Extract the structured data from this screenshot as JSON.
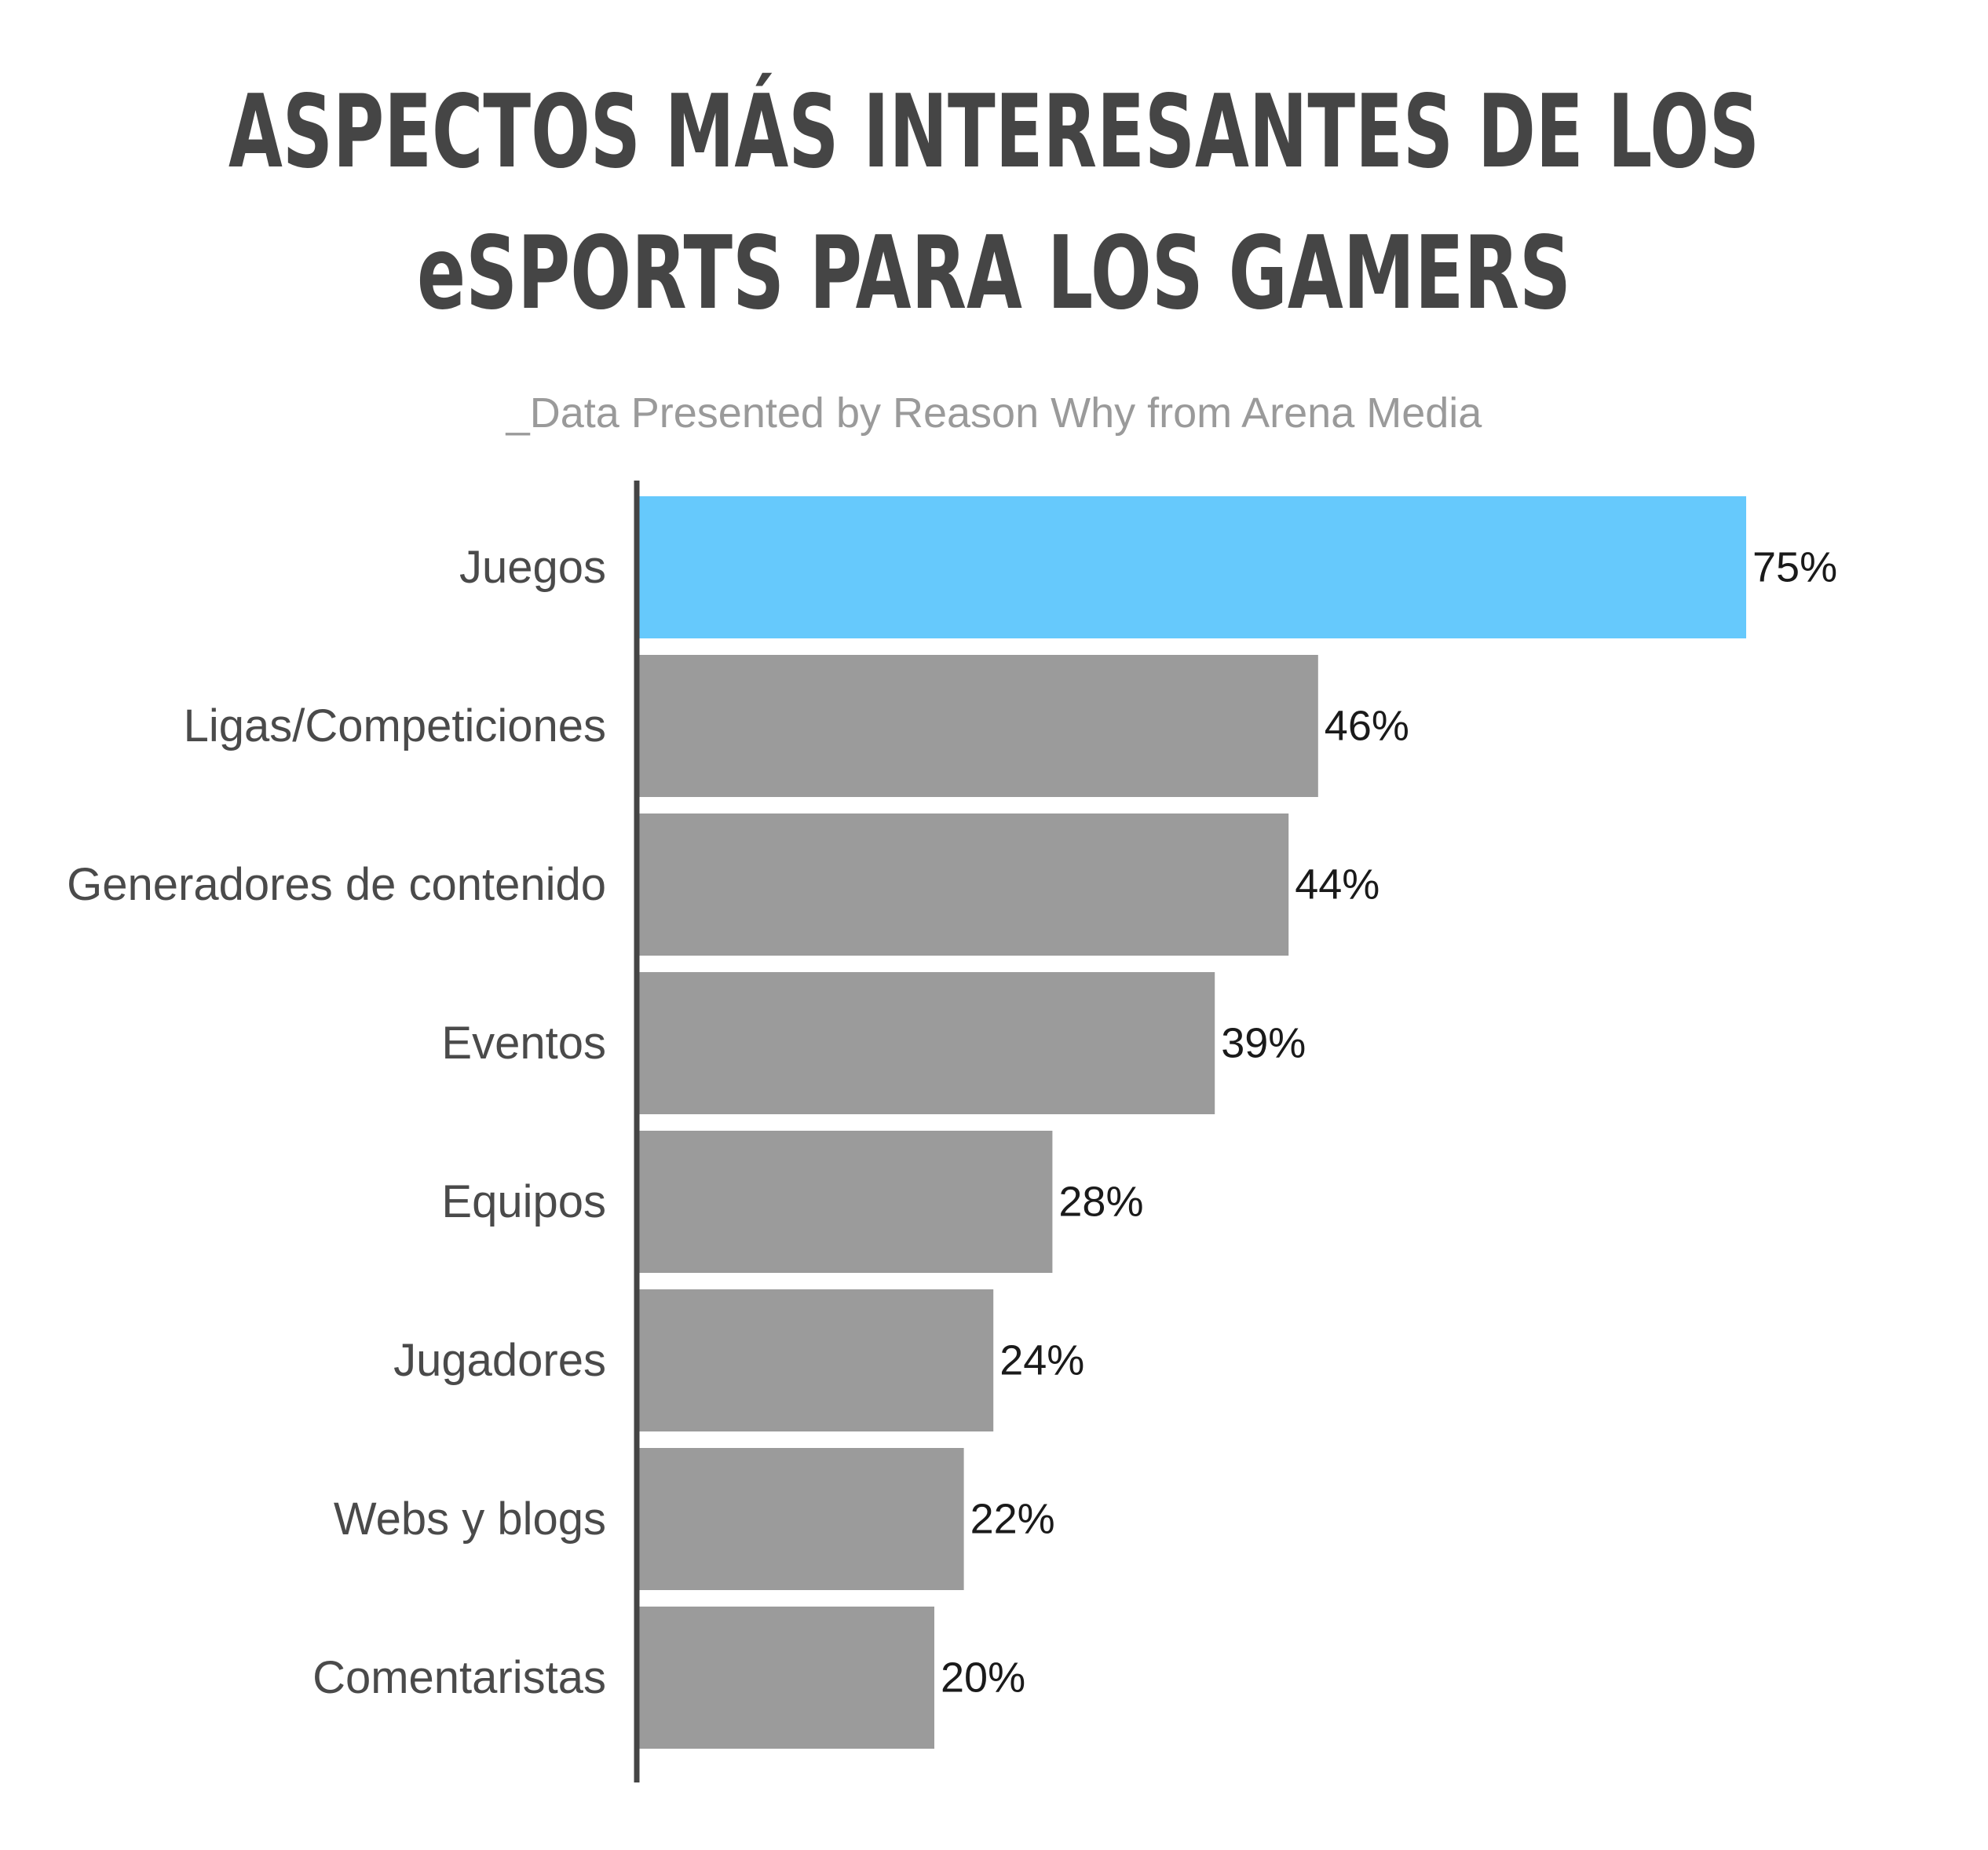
{
  "title_lines": [
    "ASPECTOS MÁS INTERESANTES DE LOS",
    "eSPORTS PARA LOS GAMERS"
  ],
  "subtitle": "_Data Presented by Reason Why from Arena Media",
  "colors": {
    "highlight": "#66c9fc",
    "bar": "#9b9b9b",
    "axis": "#444444",
    "title": "#454545",
    "subtitle": "#9a9a9a",
    "category_text": "#4a4a4a",
    "value_text": "#1a1a1a"
  },
  "chart_data": {
    "type": "bar",
    "orientation": "horizontal",
    "title": "ASPECTOS MÁS INTERESANTES DE LOS eSPORTS PARA LOS GAMERS",
    "subtitle": "_Data Presented by Reason Why from Arena Media",
    "categories": [
      "Juegos",
      "Ligas/Competiciones",
      "Generadores de contenido",
      "Eventos",
      "Equipos",
      "Jugadores",
      "Webs y blogs",
      "Comentaristas"
    ],
    "values": [
      75,
      46,
      44,
      39,
      28,
      24,
      22,
      20
    ],
    "value_labels": [
      "75%",
      "46%",
      "44%",
      "39%",
      "28%",
      "24%",
      "22%",
      "20%"
    ],
    "highlight_index": 0,
    "xlim": [
      0,
      75
    ],
    "grid": false,
    "legend": "none"
  }
}
